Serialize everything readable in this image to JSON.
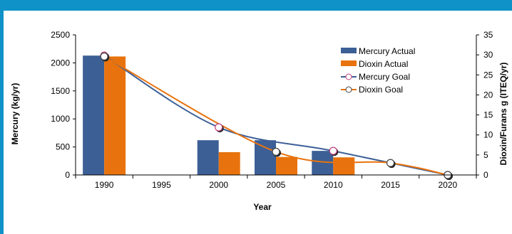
{
  "chart_data": {
    "type": "bar",
    "title": "",
    "xlabel": "Year",
    "ylabel": "Mercury (kg/yr)",
    "y2label": "Dioxin/Furans g (ITEQ/yr)",
    "x_categories": [
      "1990",
      "1995",
      "2000",
      "2005",
      "2010",
      "2015",
      "2020"
    ],
    "ylim": [
      0,
      2500
    ],
    "y_ticks": [
      "0",
      "500",
      "1000",
      "1500",
      "2000",
      "2500"
    ],
    "y2lim": [
      0,
      35
    ],
    "y2_ticks": [
      "0",
      "5",
      "10",
      "15",
      "20",
      "25",
      "30",
      "35"
    ],
    "legend_position": "top-right",
    "series": [
      {
        "name": "Mercury Actual",
        "type": "bar",
        "axis": "left",
        "color": "#3c5f96",
        "points": [
          {
            "x": "1990",
            "y": 2130
          },
          {
            "x": "2000",
            "y": 620
          },
          {
            "x": "2005",
            "y": 620
          },
          {
            "x": "2010",
            "y": 430
          }
        ]
      },
      {
        "name": "Dioxin Actual",
        "type": "bar",
        "axis": "right",
        "color": "#e8730e",
        "points": [
          {
            "x": "1990",
            "y": 29.6
          },
          {
            "x": "2000",
            "y": 5.7
          },
          {
            "x": "2005",
            "y": 4.5
          },
          {
            "x": "2010",
            "y": 4.4
          }
        ]
      },
      {
        "name": "Mercury Goal",
        "type": "line",
        "axis": "left",
        "color": "#3c5f96",
        "marker_fill": "#ffffff",
        "marker_stroke": "#c0407a",
        "points": [
          {
            "x": "1990",
            "y": 2130
          },
          {
            "x": "2000",
            "y": 850
          },
          {
            "x": "2010",
            "y": 430
          },
          {
            "x": "2020",
            "y": 0
          }
        ]
      },
      {
        "name": "Dioxin Goal",
        "type": "line",
        "axis": "right",
        "color": "#e8730e",
        "marker_fill": "#ffffff",
        "marker_stroke": "#444444",
        "points": [
          {
            "x": "1990",
            "y": 29.6
          },
          {
            "x": "2005",
            "y": 5.8
          },
          {
            "x": "2015",
            "y": 3.0
          },
          {
            "x": "2020",
            "y": 0
          }
        ]
      }
    ]
  }
}
